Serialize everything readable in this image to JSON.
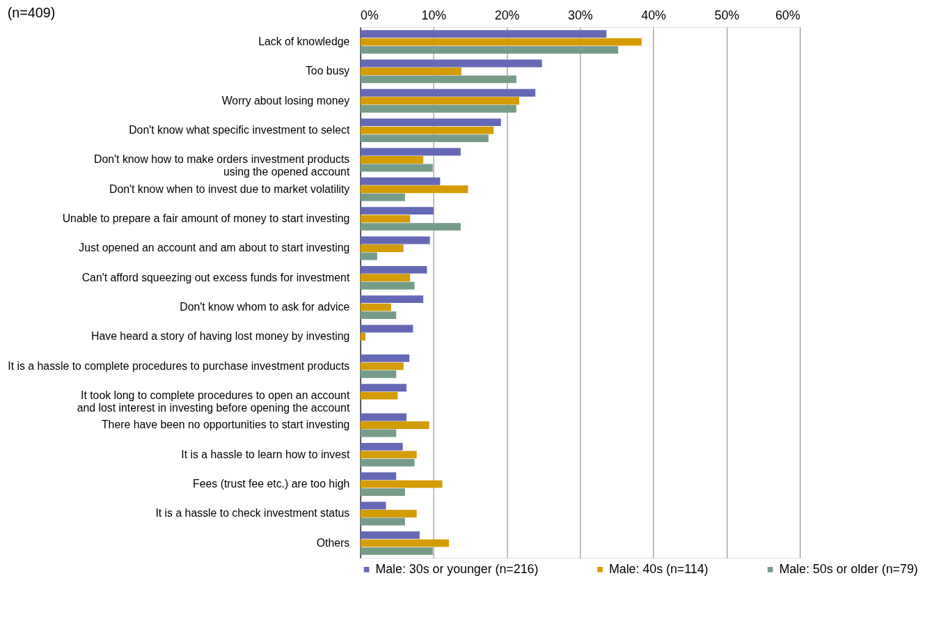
{
  "chart_data": {
    "type": "bar",
    "orientation": "horizontal",
    "title": "(n=409)",
    "categories": [
      "Lack of knowledge",
      "Too busy",
      "Worry about losing money",
      "Don't know what specific investment to select",
      "Don't know how to make orders investment products\nusing the opened account",
      "Don't know when to invest due to market volatility",
      "Unable to prepare a fair amount of money to start investing",
      "Just opened an account and am about to start investing",
      "Can't afford squeezing out excess funds for investment",
      "Don't know whom to ask for advice",
      "Have heard a story of having lost money by investing",
      "It is a hassle to complete procedures to purchase investment products",
      "It took long to complete procedures to open an account\nand lost interest in investing before opening the account",
      "There have been no opportunities to start investing",
      "It is a hassle to learn how to invest",
      "Fees (trust fee etc.) are too high",
      "It is a hassle to check investment status",
      "Others"
    ],
    "series": [
      {
        "name": "Male: 30s or younger (n=216)",
        "color": "#6569b5",
        "values": [
          33.6,
          24.8,
          23.9,
          19.2,
          13.7,
          10.9,
          10.0,
          9.5,
          9.1,
          8.6,
          7.2,
          6.7,
          6.3,
          6.3,
          5.8,
          4.9,
          3.5,
          8.1
        ]
      },
      {
        "name": "Male: 40s (n=114)",
        "color": "#d49c00",
        "values": [
          38.4,
          13.8,
          21.7,
          18.2,
          8.6,
          14.7,
          6.8,
          5.9,
          6.8,
          4.2,
          0.7,
          5.9,
          5.1,
          9.4,
          7.7,
          11.2,
          7.7,
          12.1
        ]
      },
      {
        "name": "Male: 50s or older (n=79)",
        "color": "#759c88",
        "values": [
          35.2,
          21.3,
          21.3,
          17.5,
          9.9,
          6.1,
          13.7,
          2.3,
          7.4,
          4.9,
          0,
          4.9,
          0,
          4.9,
          7.4,
          6.1,
          6.1,
          9.9
        ]
      }
    ],
    "xlim": [
      0,
      60
    ],
    "xticks": [
      {
        "value": 0,
        "label": "0%"
      },
      {
        "value": 10,
        "label": "10%"
      },
      {
        "value": 20,
        "label": "20%"
      },
      {
        "value": 30,
        "label": "30%"
      },
      {
        "value": 40,
        "label": "40%"
      },
      {
        "value": 50,
        "label": "50%"
      },
      {
        "value": 60,
        "label": "60%"
      }
    ],
    "grid": "x",
    "legend": "bottom"
  }
}
